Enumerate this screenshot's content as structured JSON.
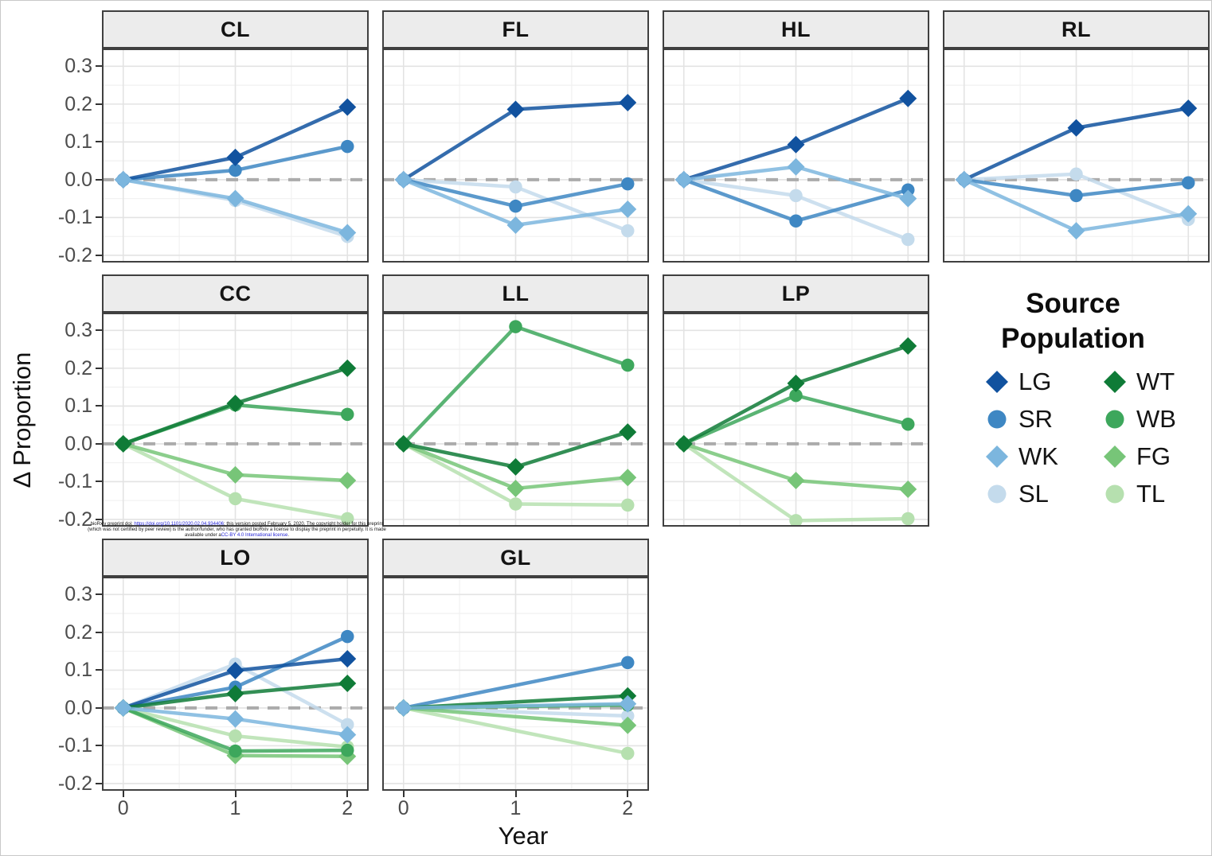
{
  "figure": {
    "y_axis_title": "Δ Proportion",
    "x_axis_title": "Year"
  },
  "legend": {
    "title": "Source Population",
    "column1": [
      "LG",
      "SR",
      "WK",
      "SL"
    ],
    "column2": [
      "WT",
      "WB",
      "FG",
      "TL"
    ]
  },
  "notice": {
    "line1_pre": "bioRxiv preprint doi: ",
    "line1_link": "https://doi.org/10.1101/2020.02.04.934406",
    "line1_post": "; this version posted February 5, 2020. The copyright holder for this preprint",
    "line2": "(which was not certified by peer review) is the author/funder, who has granted bioRxiv a license to display the preprint in perpetuity. It is made",
    "line3_pre": "available under a",
    "line3_link": "CC-BY 4.0 International license",
    "line3_post": "."
  },
  "chart_data": {
    "type": "line",
    "xlabel": "Year",
    "ylabel": "Δ Proportion",
    "xticks": [
      0,
      1,
      2
    ],
    "xtick_labels": [
      "0",
      "1",
      "2"
    ],
    "yticks": [
      0.3,
      0.2,
      0.1,
      0.0,
      -0.1,
      -0.2
    ],
    "ytick_labels": [
      "0.3",
      "0.2",
      "0.1",
      "0.0",
      "-0.1",
      "-0.2"
    ],
    "xlim": [
      -0.19,
      2.19
    ],
    "ylim": [
      -0.219,
      0.347
    ],
    "minor_x": [
      0.5,
      1.5
    ],
    "minor_y": [
      0.25,
      0.15,
      0.05,
      -0.05,
      -0.15
    ],
    "grid": "major+minor",
    "zero_line": {
      "y": 0,
      "style": "dashed",
      "color": "#ababab"
    },
    "legend_position": "right-middle",
    "legend_title": "Source Population",
    "series_style": {
      "LG": {
        "label": "LG",
        "color": "#11529F",
        "shape": "diamond"
      },
      "SR": {
        "label": "SR",
        "color": "#3E87C3",
        "shape": "circle"
      },
      "WK": {
        "label": "WK",
        "color": "#7CB6DE",
        "shape": "diamond"
      },
      "SL": {
        "label": "SL",
        "color": "#C4DBEC",
        "shape": "circle"
      },
      "WT": {
        "label": "WT",
        "color": "#0F7B37",
        "shape": "diamond"
      },
      "WB": {
        "label": "WB",
        "color": "#3DA75C",
        "shape": "circle"
      },
      "FG": {
        "label": "FG",
        "color": "#77C578",
        "shape": "diamond"
      },
      "TL": {
        "label": "TL",
        "color": "#B6E0AF",
        "shape": "circle"
      }
    },
    "panels": [
      {
        "title": "CL",
        "row": 1,
        "col": 1,
        "series": [
          {
            "id": "SL",
            "x": [
              0,
              1,
              2
            ],
            "values": [
              0,
              -0.055,
              -0.15
            ]
          },
          {
            "id": "SR",
            "x": [
              0,
              1,
              2
            ],
            "values": [
              0,
              0.025,
              0.088
            ]
          },
          {
            "id": "LG",
            "x": [
              0,
              1,
              2
            ],
            "values": [
              0,
              0.059,
              0.192
            ]
          },
          {
            "id": "WK",
            "x": [
              0,
              1,
              2
            ],
            "values": [
              0,
              -0.05,
              -0.14
            ]
          }
        ]
      },
      {
        "title": "FL",
        "row": 1,
        "col": 2,
        "series": [
          {
            "id": "SL",
            "x": [
              0,
              1,
              2
            ],
            "values": [
              0,
              -0.019,
              -0.135
            ]
          },
          {
            "id": "SR",
            "x": [
              0,
              1,
              2
            ],
            "values": [
              0,
              -0.07,
              -0.011
            ]
          },
          {
            "id": "LG",
            "x": [
              0,
              1,
              2
            ],
            "values": [
              0,
              0.186,
              0.204
            ]
          },
          {
            "id": "WK",
            "x": [
              0,
              1,
              2
            ],
            "values": [
              0,
              -0.12,
              -0.078
            ]
          }
        ]
      },
      {
        "title": "HL",
        "row": 1,
        "col": 3,
        "series": [
          {
            "id": "SL",
            "x": [
              0,
              1,
              2
            ],
            "values": [
              0,
              -0.042,
              -0.158
            ]
          },
          {
            "id": "SR",
            "x": [
              0,
              1,
              2
            ],
            "values": [
              0,
              -0.109,
              -0.027
            ]
          },
          {
            "id": "LG",
            "x": [
              0,
              1,
              2
            ],
            "values": [
              0,
              0.093,
              0.215
            ]
          },
          {
            "id": "WK",
            "x": [
              0,
              1,
              2
            ],
            "values": [
              0,
              0.034,
              -0.05
            ]
          }
        ]
      },
      {
        "title": "RL",
        "row": 1,
        "col": 4,
        "series": [
          {
            "id": "SL",
            "x": [
              0,
              1,
              2
            ],
            "values": [
              0,
              0.015,
              -0.105
            ]
          },
          {
            "id": "SR",
            "x": [
              0,
              1,
              2
            ],
            "values": [
              0,
              -0.042,
              -0.008
            ]
          },
          {
            "id": "LG",
            "x": [
              0,
              1,
              2
            ],
            "values": [
              0,
              0.137,
              0.189
            ]
          },
          {
            "id": "WK",
            "x": [
              0,
              1,
              2
            ],
            "values": [
              0,
              -0.135,
              -0.09
            ]
          }
        ]
      },
      {
        "title": "CC",
        "row": 2,
        "col": 1,
        "series": [
          {
            "id": "TL",
            "x": [
              0,
              1,
              2
            ],
            "values": [
              0,
              -0.145,
              -0.198
            ]
          },
          {
            "id": "FG",
            "x": [
              0,
              1,
              2
            ],
            "values": [
              0,
              -0.082,
              -0.097
            ]
          },
          {
            "id": "WB",
            "x": [
              0,
              1,
              2
            ],
            "values": [
              0,
              0.103,
              0.078
            ]
          },
          {
            "id": "WT",
            "x": [
              0,
              1,
              2
            ],
            "values": [
              0,
              0.107,
              0.2
            ]
          }
        ]
      },
      {
        "title": "LL",
        "row": 2,
        "col": 2,
        "series": [
          {
            "id": "TL",
            "x": [
              0,
              1,
              2
            ],
            "values": [
              0,
              -0.159,
              -0.162
            ]
          },
          {
            "id": "FG",
            "x": [
              0,
              1,
              2
            ],
            "values": [
              0,
              -0.118,
              -0.089
            ]
          },
          {
            "id": "WB",
            "x": [
              0,
              1,
              2
            ],
            "values": [
              0,
              0.31,
              0.208
            ]
          },
          {
            "id": "WT",
            "x": [
              0,
              1,
              2
            ],
            "values": [
              0,
              -0.061,
              0.031
            ]
          }
        ]
      },
      {
        "title": "LP",
        "row": 2,
        "col": 3,
        "series": [
          {
            "id": "TL",
            "x": [
              0,
              1,
              2
            ],
            "values": [
              0,
              -0.203,
              -0.198
            ]
          },
          {
            "id": "FG",
            "x": [
              0,
              1,
              2
            ],
            "values": [
              0,
              -0.097,
              -0.12
            ]
          },
          {
            "id": "WB",
            "x": [
              0,
              1,
              2
            ],
            "values": [
              0,
              0.128,
              0.052
            ]
          },
          {
            "id": "WT",
            "x": [
              0,
              1,
              2
            ],
            "values": [
              0,
              0.16,
              0.259
            ]
          }
        ]
      },
      {
        "title": "LO",
        "row": 3,
        "col": 1,
        "series": [
          {
            "id": "TL",
            "x": [
              0,
              1,
              2
            ],
            "values": [
              0,
              -0.074,
              -0.103
            ]
          },
          {
            "id": "SL",
            "x": [
              0,
              1,
              2
            ],
            "values": [
              0,
              0.116,
              -0.044
            ]
          },
          {
            "id": "FG",
            "x": [
              0,
              1,
              2
            ],
            "values": [
              0,
              -0.126,
              -0.128
            ]
          },
          {
            "id": "WB",
            "x": [
              0,
              1,
              2
            ],
            "values": [
              0,
              -0.114,
              -0.112
            ]
          },
          {
            "id": "SR",
            "x": [
              0,
              1,
              2
            ],
            "values": [
              0,
              0.055,
              0.189
            ]
          },
          {
            "id": "LG",
            "x": [
              0,
              1,
              2
            ],
            "values": [
              0,
              0.099,
              0.13
            ]
          },
          {
            "id": "WT",
            "x": [
              0,
              1,
              2
            ],
            "values": [
              0,
              0.038,
              0.065
            ]
          },
          {
            "id": "WK",
            "x": [
              0,
              1,
              2
            ],
            "values": [
              0,
              -0.029,
              -0.071
            ]
          }
        ]
      },
      {
        "title": "GL",
        "row": 3,
        "col": 2,
        "series": [
          {
            "id": "TL",
            "x": [
              0,
              2
            ],
            "values": [
              0,
              -0.12
            ]
          },
          {
            "id": "SL",
            "x": [
              0,
              2
            ],
            "values": [
              0,
              -0.021
            ]
          },
          {
            "id": "FG",
            "x": [
              0,
              2
            ],
            "values": [
              0,
              -0.046
            ]
          },
          {
            "id": "WB",
            "x": [
              0,
              2
            ],
            "values": [
              0,
              0.008
            ]
          },
          {
            "id": "SR",
            "x": [
              0,
              2
            ],
            "values": [
              0,
              0.12
            ]
          },
          {
            "id": "WT",
            "x": [
              0,
              2
            ],
            "values": [
              0,
              0.032
            ]
          },
          {
            "id": "WK",
            "x": [
              0,
              2
            ],
            "values": [
              0,
              0.011
            ]
          }
        ]
      }
    ]
  }
}
